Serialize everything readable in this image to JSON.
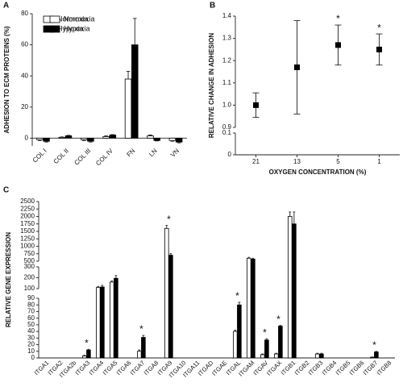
{
  "chart_data": [
    {
      "type": "bar",
      "panel_label": "A",
      "ylabel": "ADHESION TO ECM PROTEINS (%)",
      "legend": "upper left",
      "categories": [
        "COL I",
        "COL II",
        "COL III",
        "COL IV",
        "FN",
        "LN",
        "VN"
      ],
      "series": [
        {
          "name": "Normoxia",
          "color": "#ffffff",
          "values": [
            -1,
            0.5,
            -1,
            1,
            38,
            1.5,
            -1.5
          ],
          "errors": [
            0.5,
            0.3,
            0.5,
            0.5,
            5,
            0.5,
            0.5
          ]
        },
        {
          "name": "Hypoxia",
          "color": "#000000",
          "values": [
            -2,
            1.5,
            -2,
            2,
            60,
            -1.5,
            -2.5
          ],
          "errors": [
            0.5,
            0.3,
            0.5,
            0.3,
            17,
            0.3,
            0.5
          ]
        }
      ],
      "y_segments": [
        {
          "ylim": [
            -5,
            80
          ],
          "yticks": [
            0,
            20,
            40,
            60,
            80
          ]
        }
      ]
    },
    {
      "type": "scatter",
      "panel_label": "B",
      "xlabel": "OXYGEN CONCENTRATION (%)",
      "ylabel": "RELATIVE CHANGE IN ADHESION",
      "categories": [
        "21",
        "13",
        "5",
        "1"
      ],
      "values": [
        1.0,
        1.17,
        1.27,
        1.25
      ],
      "errors": [
        0.055,
        0.21,
        0.09,
        0.07
      ],
      "color": "#000000",
      "annotations": [
        {
          "category": "5",
          "text": "*"
        },
        {
          "category": "1",
          "text": "*"
        }
      ],
      "y_segments": [
        {
          "ylim": [
            0,
            0.1
          ],
          "yticks": [
            0,
            0.1
          ]
        },
        {
          "ylim": [
            0.9,
            1.4
          ],
          "yticks": [
            0.9,
            {
              "value": 1,
              "label": "1.0"
            },
            1.1,
            1.2,
            1.3,
            1.4
          ]
        }
      ]
    },
    {
      "type": "bar",
      "panel_label": "C",
      "ylabel": "RELATIVE GENE EXPRESSION",
      "legend": "upper right",
      "categories": [
        "ITGA1",
        "ITGA2",
        "ITGA2b",
        "ITGA3",
        "ITGA4",
        "ITGA5",
        "ITGA6",
        "ITGA7",
        "ITGA8",
        "ITGA9",
        "ITGA10",
        "ITGA11",
        "ITGAD",
        "ITGAE",
        "ITGAL",
        "ITGAM",
        "ITGAV",
        "ITGAX",
        "ITGB1",
        "ITGB2",
        "ITGB3",
        "ITGB4",
        "ITGB5",
        "ITGB6",
        "ITGB7",
        "ITGB8"
      ],
      "series": [
        {
          "name": "Normoxia",
          "color": "#ffffff",
          "values": [
            0,
            0,
            0,
            3,
            110,
            160,
            0,
            10,
            0,
            1600,
            0,
            0,
            0,
            0,
            40,
            600,
            5,
            6,
            2000,
            0,
            6,
            0,
            0,
            0,
            1,
            0
          ],
          "errors": [
            0,
            0,
            0,
            1,
            10,
            10,
            0,
            2,
            0,
            100,
            0,
            0,
            0,
            0,
            2,
            30,
            1,
            1,
            150,
            0,
            1,
            0,
            0,
            0,
            0.5,
            0
          ]
        },
        {
          "name": "Hypoxia",
          "color": "#000000",
          "values": [
            0,
            0,
            0,
            12,
            115,
            195,
            0,
            31,
            0,
            700,
            0,
            0,
            0,
            0,
            80,
            570,
            27,
            48,
            1750,
            0,
            6,
            0,
            0,
            0,
            9,
            0
          ],
          "errors": [
            0,
            0,
            0,
            1,
            15,
            25,
            0,
            3,
            0,
            50,
            0,
            0,
            0,
            0,
            4,
            30,
            2,
            1,
            400,
            0,
            1,
            0,
            0,
            0,
            1,
            0
          ]
        }
      ],
      "annotations": [
        {
          "category": "ITGA3",
          "text": "*"
        },
        {
          "category": "ITGA7",
          "text": "*"
        },
        {
          "category": "ITGA9",
          "text": "*"
        },
        {
          "category": "ITGAL",
          "text": "*"
        },
        {
          "category": "ITGAV",
          "text": "*"
        },
        {
          "category": "ITGAX",
          "text": "*"
        },
        {
          "category": "ITGB7",
          "text": "*"
        }
      ],
      "y_segments": [
        {
          "ylim": [
            0,
            90
          ],
          "yticks": [
            0,
            10,
            20,
            30,
            40,
            50,
            60,
            70,
            80,
            90
          ]
        },
        {
          "ylim": [
            100,
            300
          ],
          "yticks": [
            100,
            200,
            300
          ]
        },
        {
          "ylim": [
            500,
            2500
          ],
          "yticks": [
            500,
            750,
            1000,
            1250,
            1500,
            1750,
            2000,
            2250,
            2500
          ]
        }
      ]
    }
  ]
}
